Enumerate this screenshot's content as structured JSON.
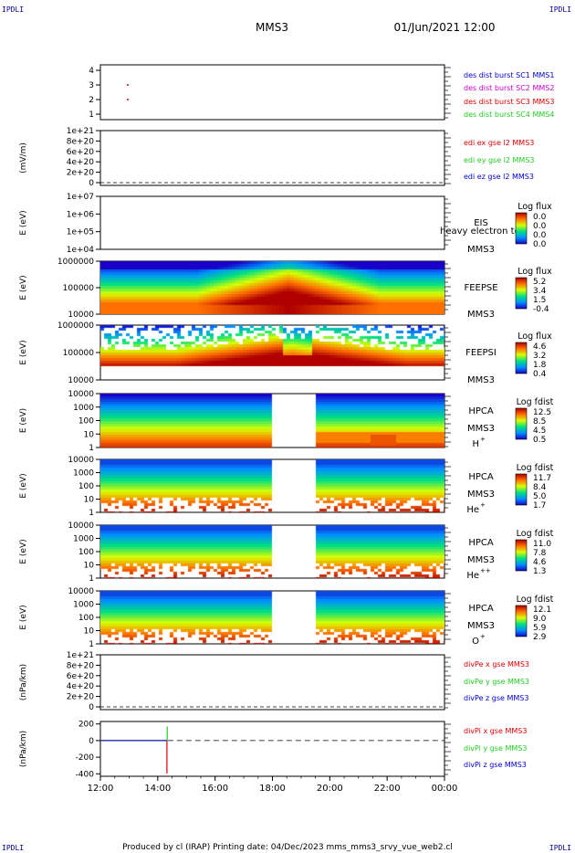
{
  "corner_mark": "IPDLI",
  "header": {
    "mission": "MMS3",
    "datetime": "01/Jun/2021 12:00"
  },
  "footer": {
    "text": "Produced by cl (IRAP)   Printing date: 04/Dec/2023   mms_mms3_srvy_vue_web2.cl"
  },
  "colors": {
    "red": "#dd0000",
    "green": "#22cc22",
    "blue": "#0000cc",
    "magenta": "#cc00cc"
  },
  "chart_data": {
    "type": "heatmap",
    "x_ticks": [
      "12:00",
      "14:00",
      "16:00",
      "18:00",
      "20:00",
      "22:00",
      "00:00"
    ],
    "xlim_hours": [
      12,
      24
    ],
    "data_gap_hours": [
      17.98,
      19.42
    ],
    "panels": [
      {
        "id": "burst",
        "ylabel": "",
        "ticks": [
          "4",
          "3",
          "2",
          "1"
        ],
        "legend": [
          {
            "text": "des dist burst SC1 MMS1",
            "color": "#0000cc"
          },
          {
            "text": "des dist burst SC2 MMS2",
            "color": "#cc00cc"
          },
          {
            "text": "des dist burst SC3 MMS3",
            "color": "#dd0000"
          },
          {
            "text": "des dist burst SC4 MMS4",
            "color": "#22cc22"
          }
        ],
        "marks": [
          {
            "x_hour": 12.95,
            "sc": 3
          }
        ]
      },
      {
        "id": "edi",
        "ylabel": "(mV/m)",
        "ticks": [
          "1e+21",
          "8e+20",
          "6e+20",
          "4e+20",
          "2e+20",
          "0"
        ],
        "legend": [
          {
            "text": "edi ex gse l2 MMS3",
            "color": "#dd0000"
          },
          {
            "text": "edi ey gse l2 MMS3",
            "color": "#22cc22"
          },
          {
            "text": "edi ez gse l2 MMS3",
            "color": "#0000cc"
          }
        ]
      },
      {
        "id": "eis",
        "ylabel": "E (eV)",
        "ticks": [
          "1e+07",
          "1e+06",
          "1e+05",
          "1e+04"
        ],
        "labels": [
          "EIS",
          "MMS3"
        ],
        "overlay": "heavy electron to",
        "colorbar": {
          "title": "Log flux",
          "values": [
            "0.0",
            "0.0",
            "0.0",
            "0.0"
          ]
        }
      },
      {
        "id": "feepse",
        "ylabel": "E (eV)",
        "ticks": [
          "1000000",
          "100000",
          "10000"
        ],
        "labels": [
          "FEEPSE",
          "MMS3"
        ],
        "colorbar": {
          "title": "Log flux",
          "values": [
            "5.2",
            "3.4",
            "1.5",
            "-0.4"
          ]
        }
      },
      {
        "id": "feepsi",
        "ylabel": "E (eV)",
        "ticks": [
          "1000000",
          "100000",
          "10000"
        ],
        "labels": [
          "FEEPSI",
          "MMS3"
        ],
        "colorbar": {
          "title": "Log flux",
          "values": [
            "4.6",
            "3.2",
            "1.8",
            "0.4"
          ]
        }
      },
      {
        "id": "hpca_h",
        "ylabel": "E (eV)",
        "ticks": [
          "10000",
          "1000",
          "100",
          "10",
          "1"
        ],
        "labels": [
          "HPCA",
          "MMS3"
        ],
        "species": "H",
        "charge": "+",
        "colorbar": {
          "title": "Log fdist",
          "values": [
            "12.5",
            "8.5",
            "4.5",
            "0.5"
          ]
        }
      },
      {
        "id": "hpca_he",
        "ylabel": "E (eV)",
        "ticks": [
          "10000",
          "1000",
          "100",
          "10",
          "1"
        ],
        "labels": [
          "HPCA",
          "MMS3"
        ],
        "species": "He",
        "charge": "+",
        "colorbar": {
          "title": "Log fdist",
          "values": [
            "11.7",
            "8.4",
            "5.0",
            "1.7"
          ]
        }
      },
      {
        "id": "hpca_hepp",
        "ylabel": "E (eV)",
        "ticks": [
          "10000",
          "1000",
          "100",
          "10",
          "1"
        ],
        "labels": [
          "HPCA",
          "MMS3"
        ],
        "species": "He",
        "charge": "++",
        "colorbar": {
          "title": "Log fdist",
          "values": [
            "11.0",
            "7.8",
            "4.6",
            "1.3"
          ]
        }
      },
      {
        "id": "hpca_o",
        "ylabel": "E (eV)",
        "ticks": [
          "10000",
          "1000",
          "100",
          "10",
          "1"
        ],
        "labels": [
          "HPCA",
          "MMS3"
        ],
        "species": "O",
        "charge": "+",
        "colorbar": {
          "title": "Log fdist",
          "values": [
            "12.1",
            "9.0",
            "5.9",
            "2.9"
          ]
        }
      },
      {
        "id": "divpe",
        "ylabel": "(nPa/km)",
        "ticks": [
          "1e+21",
          "8e+20",
          "6e+20",
          "4e+20",
          "2e+20",
          "0"
        ],
        "legend": [
          {
            "text": "divPe x gse MMS3",
            "color": "#dd0000"
          },
          {
            "text": "divPe y gse MMS3",
            "color": "#22cc22"
          },
          {
            "text": "divPe z gse MMS3",
            "color": "#0000cc"
          }
        ]
      },
      {
        "id": "divpi",
        "ylabel": "(nPa/km)",
        "ticks": [
          "200",
          "0",
          "-200",
          "-400"
        ],
        "ylim": [
          -430,
          230
        ],
        "legend": [
          {
            "text": "divPi x gse MMS3",
            "color": "#dd0000"
          },
          {
            "text": "divPi y gse MMS3",
            "color": "#22cc22"
          },
          {
            "text": "divPi z gse MMS3",
            "color": "#0000cc"
          }
        ],
        "series": [
          {
            "name": "divPi x gse MMS3",
            "x_hour": [
              12.0,
              14.32
            ],
            "y": [
              0,
              0
            ],
            "spike": {
              "x_hour": 14.32,
              "y_min": -395,
              "y_max": 0
            }
          },
          {
            "name": "divPi y gse MMS3",
            "x_hour": [
              12.0,
              14.32
            ],
            "y": [
              0,
              0
            ],
            "spike": {
              "x_hour": 14.33,
              "y_min": 0,
              "y_max": 170
            }
          },
          {
            "name": "divPi z gse MMS3",
            "x_hour": [
              12.0,
              14.32
            ],
            "y": [
              0,
              0
            ]
          }
        ]
      }
    ]
  }
}
